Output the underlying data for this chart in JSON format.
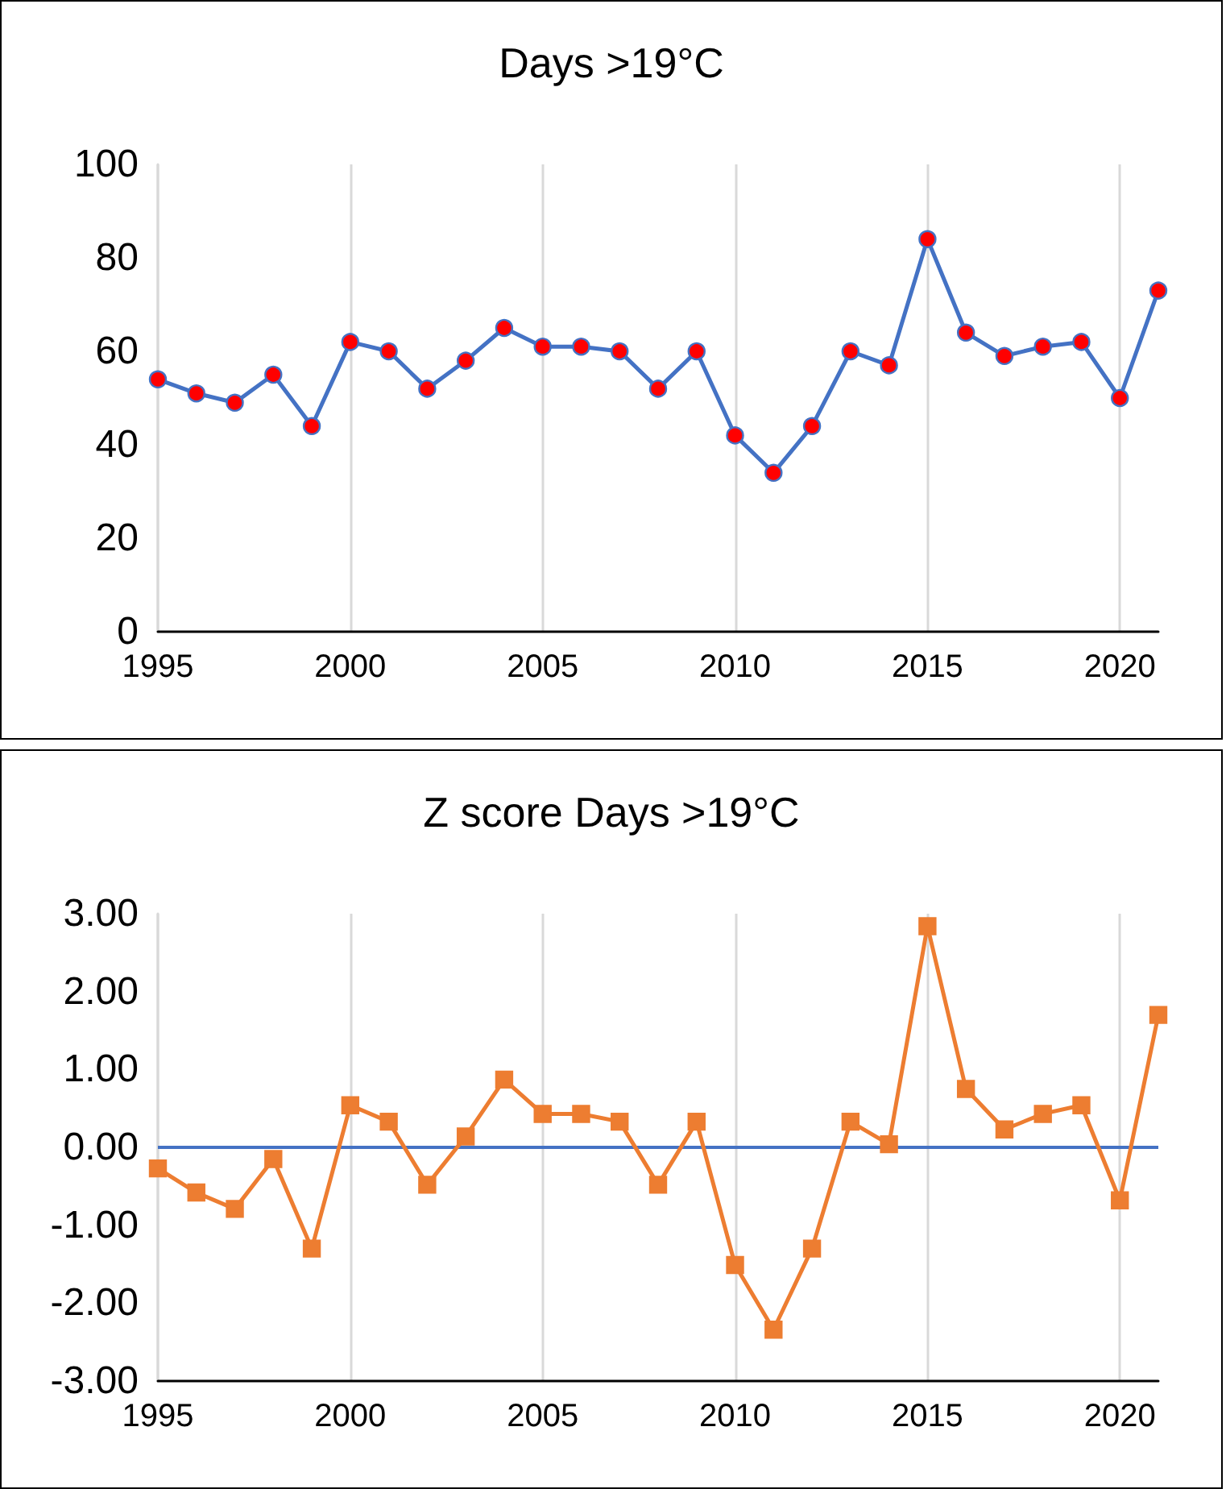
{
  "chart_data": [
    {
      "type": "line",
      "title": "Days >19°C",
      "x": [
        1995,
        1996,
        1997,
        1998,
        1999,
        2000,
        2001,
        2002,
        2003,
        2004,
        2005,
        2006,
        2007,
        2008,
        2009,
        2010,
        2011,
        2012,
        2013,
        2014,
        2015,
        2016,
        2017,
        2018,
        2019,
        2020,
        2021
      ],
      "series": [
        {
          "color": "#4472c4",
          "colors": [
            "#ff0000",
            "#ff0000",
            "#ff0000",
            "#ff0000",
            "#ff0000",
            "#ff0000",
            "#ff0000",
            "#ff0000",
            "#ff0000",
            "#ff0000",
            "#ff0000",
            "#ff0000",
            "#ff0000",
            "#ff0000",
            "#ff0000",
            "#ff0000",
            "#ff0000",
            "#ff0000",
            "#ff0000",
            "#ff0000",
            "#ff0000",
            "#ff0000",
            "#ff0000",
            "#ff0000",
            "#ff0000",
            "#ff0000",
            "#ff0000"
          ],
          "values": [
            54,
            51,
            49,
            55,
            44,
            62,
            60,
            52,
            58,
            65,
            61,
            61,
            60,
            52,
            60,
            42,
            34,
            44,
            60,
            57,
            84,
            64,
            59,
            61,
            62,
            50,
            73
          ]
        }
      ],
      "xlim": [
        1995,
        2021
      ],
      "xticks": [
        1995,
        2000,
        2005,
        2010,
        2015,
        2020
      ],
      "ylim": [
        0,
        100
      ],
      "yticks": [
        0,
        20,
        40,
        60,
        80,
        100
      ],
      "grid": "x",
      "marker": "circle",
      "line_style": "solid"
    },
    {
      "type": "line",
      "title": "Z score Days >19°C",
      "x": [
        1995,
        1996,
        1997,
        1998,
        1999,
        2000,
        2001,
        2002,
        2003,
        2004,
        2005,
        2006,
        2007,
        2008,
        2009,
        2010,
        2011,
        2012,
        2013,
        2014,
        2015,
        2016,
        2017,
        2018,
        2019,
        2020,
        2021
      ],
      "series": [
        {
          "color": "#ed7d31",
          "values": [
            -0.27,
            -0.58,
            -0.79,
            -0.15,
            -1.3,
            0.54,
            0.33,
            -0.48,
            0.14,
            0.87,
            0.43,
            0.43,
            0.33,
            -0.48,
            0.33,
            -1.51,
            -2.34,
            -1.3,
            0.33,
            0.04,
            2.84,
            0.75,
            0.23,
            0.43,
            0.54,
            -0.68,
            1.7
          ]
        }
      ],
      "xlim": [
        1995,
        2021
      ],
      "xticks": [
        1995,
        2000,
        2005,
        2010,
        2015,
        2020
      ],
      "ylim": [
        -3,
        3
      ],
      "yticks": [
        {
          "value": -3,
          "label": "-3.00"
        },
        {
          "value": -2,
          "label": "-2.00"
        },
        {
          "value": -1,
          "label": "-1.00"
        },
        {
          "value": 0,
          "label": "0.00"
        },
        {
          "value": 1,
          "label": "1.00"
        },
        {
          "value": 2,
          "label": "2.00"
        },
        {
          "value": 3,
          "label": "3.00"
        }
      ],
      "ref_lines": [
        {
          "axis": "y",
          "value": 0,
          "color": "#4472c4",
          "line_style": "solid"
        }
      ],
      "grid": "x",
      "marker": "square",
      "line_style": "solid"
    }
  ]
}
